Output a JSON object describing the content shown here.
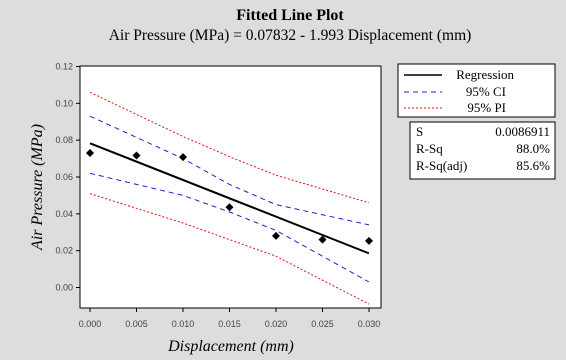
{
  "chart_data": {
    "type": "scatter",
    "title": "Fitted Line Plot",
    "subtitle": "Air Pressure (MPa) = 0.07832 - 1.993 Displacement (mm)",
    "xlabel": "Displacement (mm)",
    "ylabel": "Air Pressure (MPa)",
    "xlim": [
      0,
      0.03
    ],
    "ylim": [
      -0.01,
      0.12
    ],
    "x_ticks": [
      "0.000",
      "0.005",
      "0.010",
      "0.015",
      "0.020",
      "0.025",
      "0.030"
    ],
    "y_ticks": [
      "0.00",
      "0.02",
      "0.04",
      "0.06",
      "0.08",
      "0.10",
      "0.12"
    ],
    "grid": false,
    "points": {
      "x": [
        0.0,
        0.005,
        0.01,
        0.015,
        0.02,
        0.025,
        0.03
      ],
      "y": [
        0.073,
        0.0717,
        0.0708,
        0.0436,
        0.028,
        0.026,
        0.0253
      ]
    },
    "regression": {
      "intercept": 0.07832,
      "slope": -1.993
    },
    "ci_95": {
      "x": [
        0.0,
        0.01,
        0.015,
        0.02,
        0.03
      ],
      "upper": [
        0.093,
        0.07,
        0.056,
        0.045,
        0.034
      ],
      "lower": [
        0.062,
        0.05,
        0.041,
        0.031,
        0.003
      ]
    },
    "pi_95": {
      "x": [
        0.0,
        0.01,
        0.015,
        0.02,
        0.03
      ],
      "upper": [
        0.106,
        0.082,
        0.071,
        0.061,
        0.046
      ],
      "lower": [
        0.051,
        0.035,
        0.026,
        0.017,
        -0.009
      ]
    },
    "legend": {
      "position": "top-right",
      "entries": [
        {
          "label": "Regression",
          "style": "solid",
          "color": "#000000"
        },
        {
          "label": "95% CI",
          "style": "dashed",
          "color": "#2222cc"
        },
        {
          "label": "95% PI",
          "style": "dotted",
          "color": "#dd1111"
        }
      ]
    },
    "stats": [
      {
        "label": "S",
        "value": "0.0086911"
      },
      {
        "label": "R-Sq",
        "value": "88.0%"
      },
      {
        "label": "R-Sq(adj)",
        "value": "85.6%"
      }
    ],
    "colors": {
      "background": "#dddddd",
      "plot_area": "#ffffff",
      "regression": "#000000",
      "ci": "#2222cc",
      "pi": "#dd1111",
      "points": "#000000"
    }
  }
}
